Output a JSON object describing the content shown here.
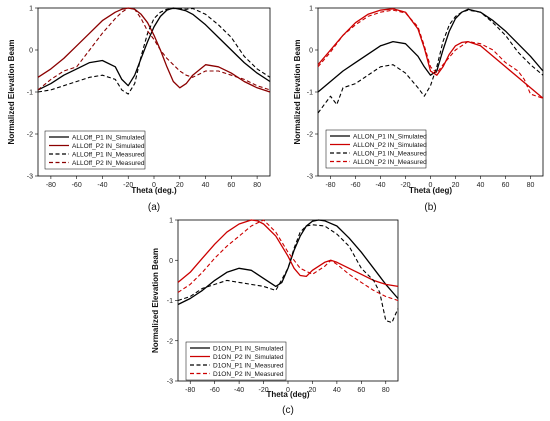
{
  "chart_data": [
    {
      "panel_label": "(a)",
      "type": "line",
      "xlabel": "Theta (deg.)",
      "ylabel": "Normalized Elevation Beam",
      "xlim": [
        -90,
        90
      ],
      "ylim": [
        -3,
        1
      ],
      "xticks": [
        -80,
        -60,
        -40,
        -20,
        0,
        20,
        40,
        60,
        80
      ],
      "yticks": [
        -3,
        -2,
        -1,
        0,
        1
      ],
      "legend_position": "lower-left",
      "series": [
        {
          "name": "ALLOff_P1 IN_Simulated",
          "color": "#000000",
          "dash": "solid",
          "x": [
            -90,
            -80,
            -70,
            -60,
            -50,
            -40,
            -30,
            -25,
            -20,
            -15,
            -10,
            -5,
            0,
            5,
            10,
            15,
            20,
            25,
            30,
            40,
            50,
            60,
            70,
            80,
            90
          ],
          "y": [
            -0.95,
            -0.8,
            -0.6,
            -0.45,
            -0.3,
            -0.25,
            -0.4,
            -0.7,
            -0.85,
            -0.6,
            -0.2,
            0.2,
            0.55,
            0.8,
            0.95,
            1.0,
            0.97,
            0.93,
            0.85,
            0.6,
            0.3,
            0.0,
            -0.3,
            -0.55,
            -0.75
          ]
        },
        {
          "name": "ALLOff_P2 IN_Simulated",
          "color": "#8b0000",
          "dash": "solid",
          "x": [
            -90,
            -80,
            -70,
            -60,
            -50,
            -40,
            -30,
            -25,
            -20,
            -15,
            -10,
            -5,
            0,
            5,
            10,
            15,
            20,
            25,
            30,
            40,
            50,
            60,
            70,
            80,
            90
          ],
          "y": [
            -0.65,
            -0.45,
            -0.2,
            0.1,
            0.4,
            0.7,
            0.9,
            0.97,
            1.0,
            0.97,
            0.85,
            0.65,
            0.35,
            0.0,
            -0.4,
            -0.75,
            -0.9,
            -0.8,
            -0.6,
            -0.35,
            -0.4,
            -0.55,
            -0.75,
            -0.9,
            -1.0
          ]
        },
        {
          "name": "ALLOff_P1 IN_Measured",
          "color": "#000000",
          "dash": "dashed",
          "x": [
            -90,
            -80,
            -70,
            -60,
            -50,
            -40,
            -30,
            -25,
            -20,
            -15,
            -10,
            -5,
            0,
            5,
            10,
            15,
            20,
            25,
            30,
            40,
            50,
            60,
            70,
            80,
            90
          ],
          "y": [
            -1.0,
            -0.95,
            -0.85,
            -0.75,
            -0.65,
            -0.6,
            -0.7,
            -0.95,
            -1.05,
            -0.8,
            -0.15,
            0.4,
            0.75,
            0.9,
            0.97,
            0.99,
            0.98,
            0.97,
            0.99,
            0.85,
            0.6,
            0.3,
            -0.15,
            -0.45,
            -0.65
          ]
        },
        {
          "name": "ALLOff_P2 IN_Measured",
          "color": "#8b0000",
          "dash": "dashed",
          "x": [
            -90,
            -80,
            -70,
            -60,
            -50,
            -40,
            -30,
            -25,
            -20,
            -15,
            -10,
            -5,
            0,
            5,
            10,
            15,
            20,
            25,
            30,
            40,
            50,
            60,
            70,
            80,
            90
          ],
          "y": [
            -0.95,
            -0.7,
            -0.5,
            -0.4,
            0.0,
            0.4,
            0.75,
            0.9,
            1.0,
            0.97,
            0.75,
            0.45,
            0.25,
            0.0,
            -0.2,
            -0.35,
            -0.5,
            -0.6,
            -0.65,
            -0.5,
            -0.5,
            -0.6,
            -0.7,
            -0.85,
            -0.95
          ]
        }
      ]
    },
    {
      "panel_label": "(b)",
      "type": "line",
      "xlabel": "Theta (deg)",
      "ylabel": "Normalized Elevation Beam",
      "xlim": [
        -90,
        90
      ],
      "ylim": [
        -3,
        1
      ],
      "xticks": [
        -80,
        -60,
        -40,
        -20,
        0,
        20,
        40,
        60,
        80
      ],
      "yticks": [
        -3,
        -2,
        -1,
        0,
        1
      ],
      "legend_position": "lower-left",
      "series": [
        {
          "name": "ALLON_P1 IN_Simulated",
          "color": "#000000",
          "dash": "solid",
          "x": [
            -90,
            -80,
            -70,
            -60,
            -50,
            -40,
            -30,
            -20,
            -10,
            -5,
            0,
            5,
            10,
            15,
            20,
            25,
            30,
            40,
            50,
            60,
            70,
            80,
            90
          ],
          "y": [
            -1.0,
            -0.75,
            -0.5,
            -0.3,
            -0.1,
            0.1,
            0.2,
            0.15,
            -0.15,
            -0.4,
            -0.6,
            -0.5,
            0.0,
            0.45,
            0.75,
            0.9,
            0.97,
            0.9,
            0.7,
            0.45,
            0.15,
            -0.15,
            -0.5
          ]
        },
        {
          "name": "ALLON_P2 IN_Simulated",
          "color": "#cc0000",
          "dash": "solid",
          "x": [
            -90,
            -80,
            -70,
            -60,
            -50,
            -40,
            -30,
            -20,
            -10,
            -5,
            0,
            5,
            10,
            15,
            20,
            25,
            30,
            40,
            50,
            60,
            70,
            80,
            90
          ],
          "y": [
            -0.35,
            0.0,
            0.35,
            0.65,
            0.85,
            0.95,
            0.98,
            0.9,
            0.5,
            0.05,
            -0.5,
            -0.6,
            -0.4,
            -0.1,
            0.1,
            0.18,
            0.2,
            0.1,
            -0.15,
            -0.4,
            -0.65,
            -0.9,
            -1.15
          ]
        },
        {
          "name": "ALLON_P1 IN_Measured",
          "color": "#000000",
          "dash": "dashed",
          "x": [
            -90,
            -80,
            -75,
            -70,
            -60,
            -50,
            -40,
            -30,
            -20,
            -10,
            -5,
            0,
            5,
            10,
            15,
            20,
            25,
            30,
            40,
            50,
            60,
            70,
            80,
            90
          ],
          "y": [
            -1.5,
            -1.1,
            -1.3,
            -0.9,
            -0.8,
            -0.6,
            -0.4,
            -0.35,
            -0.55,
            -0.9,
            -1.1,
            -0.85,
            -0.4,
            0.2,
            0.6,
            0.8,
            0.9,
            0.95,
            0.9,
            0.65,
            0.35,
            -0.05,
            -0.35,
            -0.6
          ]
        },
        {
          "name": "ALLON_P2 IN_Measured",
          "color": "#cc0000",
          "dash": "dashed",
          "x": [
            -90,
            -80,
            -70,
            -60,
            -50,
            -40,
            -30,
            -20,
            -10,
            -5,
            0,
            5,
            10,
            20,
            30,
            40,
            50,
            60,
            70,
            75,
            80,
            85,
            90
          ],
          "y": [
            -0.4,
            -0.05,
            0.35,
            0.6,
            0.8,
            0.9,
            0.95,
            0.88,
            0.55,
            0.1,
            -0.4,
            -0.55,
            -0.35,
            0.0,
            0.2,
            0.15,
            0.0,
            -0.3,
            -0.5,
            -0.7,
            -1.05,
            -1.1,
            -1.15
          ]
        }
      ]
    },
    {
      "panel_label": "(c)",
      "type": "line",
      "xlabel": "Theta (deg)",
      "ylabel": "Normalized Elevation Beam",
      "xlim": [
        -90,
        90
      ],
      "ylim": [
        -3,
        1
      ],
      "xticks": [
        -80,
        -60,
        -40,
        -20,
        0,
        20,
        40,
        60,
        80
      ],
      "yticks": [
        -3,
        -2,
        -1,
        0,
        1
      ],
      "legend_position": "lower-left",
      "series": [
        {
          "name": "D1ON_P1 IN_Simulated",
          "color": "#000000",
          "dash": "solid",
          "x": [
            -90,
            -80,
            -70,
            -60,
            -50,
            -40,
            -30,
            -20,
            -10,
            -5,
            0,
            5,
            10,
            15,
            20,
            25,
            30,
            40,
            50,
            60,
            70,
            80,
            90
          ],
          "y": [
            -1.1,
            -0.95,
            -0.75,
            -0.5,
            -0.3,
            -0.2,
            -0.25,
            -0.45,
            -0.65,
            -0.55,
            -0.2,
            0.25,
            0.6,
            0.85,
            0.97,
            1.0,
            0.98,
            0.85,
            0.55,
            0.2,
            -0.2,
            -0.6,
            -0.95
          ]
        },
        {
          "name": "D1ON_P2 IN_Simulated",
          "color": "#cc0000",
          "dash": "solid",
          "x": [
            -90,
            -80,
            -70,
            -60,
            -50,
            -40,
            -30,
            -25,
            -20,
            -10,
            0,
            5,
            10,
            15,
            20,
            30,
            35,
            40,
            50,
            60,
            70,
            80,
            90
          ],
          "y": [
            -0.55,
            -0.3,
            0.05,
            0.4,
            0.7,
            0.9,
            1.0,
            0.98,
            0.9,
            0.6,
            0.1,
            -0.2,
            -0.38,
            -0.4,
            -0.25,
            -0.05,
            0.0,
            -0.05,
            -0.2,
            -0.35,
            -0.5,
            -0.6,
            -0.65
          ]
        },
        {
          "name": "D1ON_P1 IN_Measured",
          "color": "#000000",
          "dash": "dashed",
          "x": [
            -90,
            -80,
            -70,
            -60,
            -50,
            -40,
            -30,
            -20,
            -10,
            0,
            5,
            10,
            15,
            20,
            30,
            40,
            50,
            60,
            70,
            75,
            80,
            85,
            90
          ],
          "y": [
            -1.0,
            -0.9,
            -0.7,
            -0.6,
            -0.5,
            -0.55,
            -0.6,
            -0.65,
            -0.75,
            -0.2,
            0.3,
            0.7,
            0.85,
            0.88,
            0.85,
            0.65,
            0.35,
            -0.2,
            -0.5,
            -0.8,
            -1.5,
            -1.55,
            -1.2
          ]
        },
        {
          "name": "D1ON_P2 IN_Measured",
          "color": "#cc0000",
          "dash": "dashed",
          "x": [
            -90,
            -80,
            -70,
            -60,
            -50,
            -40,
            -30,
            -20,
            -10,
            0,
            5,
            10,
            20,
            30,
            35,
            40,
            50,
            60,
            70,
            80,
            90
          ],
          "y": [
            -0.8,
            -0.6,
            -0.3,
            0.05,
            0.35,
            0.6,
            0.85,
            1.0,
            0.7,
            0.2,
            0.0,
            -0.2,
            -0.35,
            -0.15,
            0.0,
            -0.1,
            -0.35,
            -0.55,
            -0.75,
            -0.9,
            -1.0
          ]
        }
      ]
    }
  ]
}
